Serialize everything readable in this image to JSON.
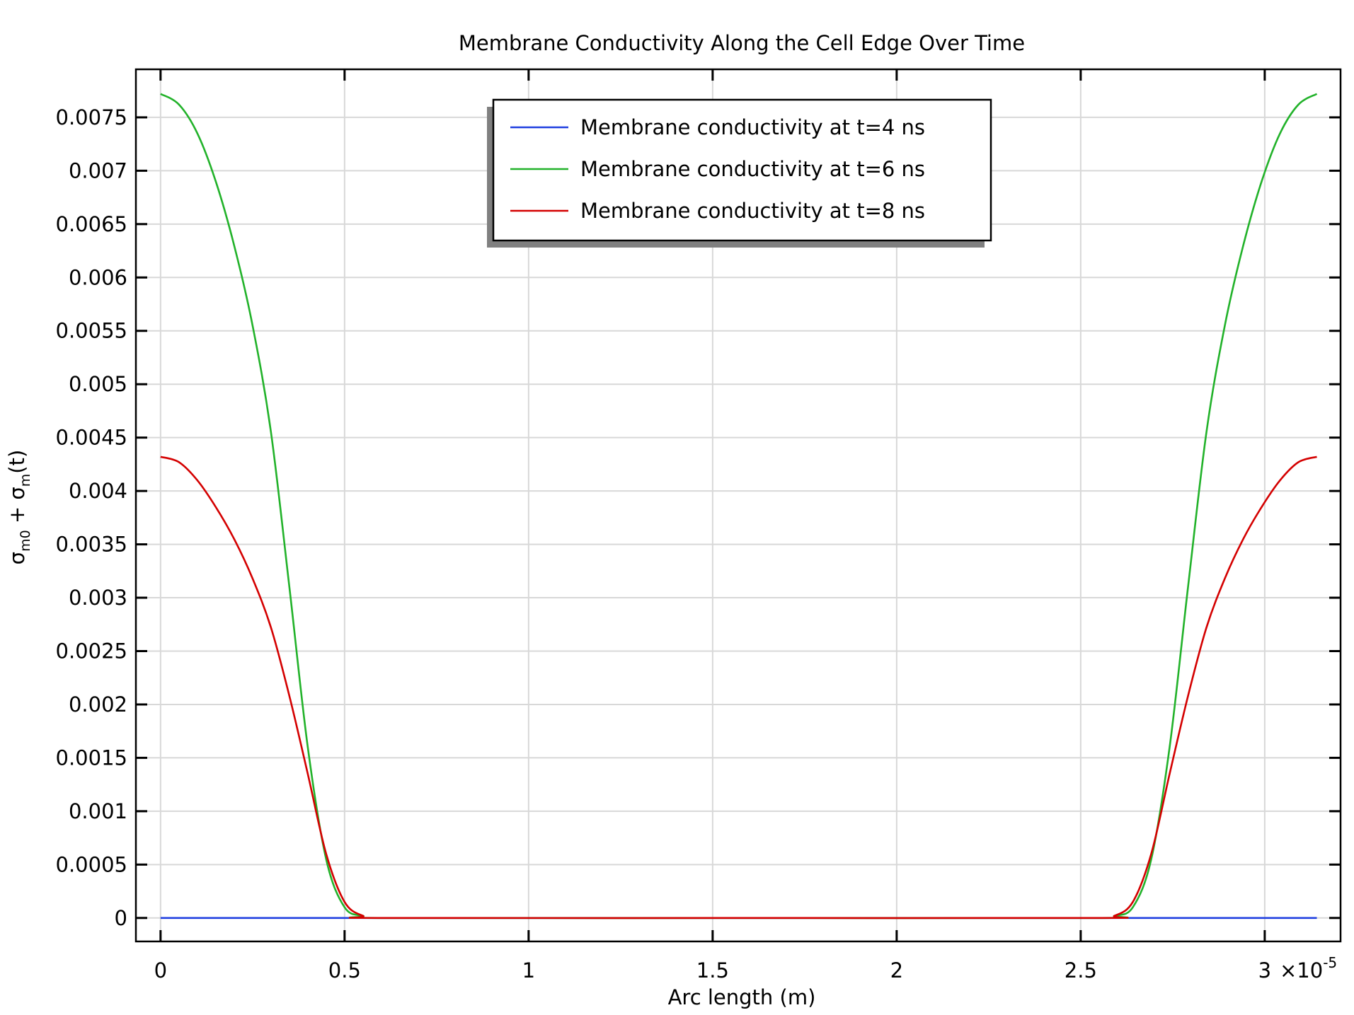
{
  "chart_data": {
    "type": "line",
    "title": "Membrane Conductivity Along the Cell Edge Over Time",
    "xlabel": "Arc length (m)",
    "ylabel": {
      "base": "σ",
      "sub1": "m0",
      "mid": " + σ",
      "sub2": "m",
      "tail": "(t)"
    },
    "x_multiplier_label": {
      "times": "×10",
      "exp": "-5"
    },
    "xlim": [
      -0.067,
      3.206
    ],
    "ylim": [
      -0.00022,
      0.00795
    ],
    "grid": true,
    "legend_position": "top-center",
    "x_ticks": [
      0,
      0.5,
      1,
      1.5,
      2,
      2.5,
      3
    ],
    "x_tick_labels": [
      "0",
      "0.5",
      "1",
      "1.5",
      "2",
      "2.5",
      "3"
    ],
    "y_ticks": [
      0,
      0.0005,
      0.001,
      0.0015,
      0.002,
      0.0025,
      0.003,
      0.0035,
      0.004,
      0.0045,
      0.005,
      0.0055,
      0.006,
      0.0065,
      0.007,
      0.0075
    ],
    "y_tick_labels": [
      "0",
      "0.0005",
      "0.001",
      "0.0015",
      "0.002",
      "0.0025",
      "0.003",
      "0.0035",
      "0.004",
      "0.0045",
      "0.005",
      "0.0055",
      "0.006",
      "0.0065",
      "0.007",
      "0.0075"
    ],
    "series": [
      {
        "name": "Membrane conductivity at t=4 ns",
        "color": "#1f3fe0",
        "x": [
          0,
          3.1416
        ],
        "y": [
          0,
          0
        ]
      },
      {
        "name": "Membrane conductivity at t=6 ns",
        "color": "#22b22a",
        "x": [
          0,
          0.05,
          0.1,
          0.15,
          0.2,
          0.25,
          0.3,
          0.35,
          0.4,
          0.45,
          0.5,
          0.55,
          0.6,
          1.5708,
          2.5416,
          2.5916,
          2.6416,
          2.6916,
          2.7416,
          2.7916,
          2.8416,
          2.8916,
          2.9416,
          2.9916,
          3.0416,
          3.0916,
          3.1416
        ],
        "y": [
          0.00772,
          0.00762,
          0.00735,
          0.0069,
          0.0063,
          0.00555,
          0.00455,
          0.0031,
          0.0016,
          0.00055,
          0.0001,
          2e-05,
          0,
          0,
          0,
          2e-05,
          0.0001,
          0.00055,
          0.0016,
          0.0031,
          0.00455,
          0.00555,
          0.0063,
          0.0069,
          0.00735,
          0.00762,
          0.00772
        ]
      },
      {
        "name": "Membrane conductivity at t=8 ns",
        "color": "#d40000",
        "x": [
          0,
          0.05,
          0.1,
          0.15,
          0.2,
          0.25,
          0.3,
          0.35,
          0.4,
          0.45,
          0.5,
          0.55,
          0.6,
          1.5708,
          2.5416,
          2.5916,
          2.6416,
          2.6916,
          2.7416,
          2.7916,
          2.8416,
          2.8916,
          2.9416,
          2.9916,
          3.0416,
          3.0916,
          3.1416
        ],
        "y": [
          0.00432,
          0.00427,
          0.0041,
          0.00385,
          0.00355,
          0.00318,
          0.00272,
          0.00208,
          0.00135,
          0.0006,
          0.00015,
          2e-05,
          0,
          0,
          0,
          2e-05,
          0.00015,
          0.0006,
          0.00135,
          0.00208,
          0.00272,
          0.00318,
          0.00355,
          0.00385,
          0.0041,
          0.00427,
          0.00432
        ]
      }
    ]
  }
}
